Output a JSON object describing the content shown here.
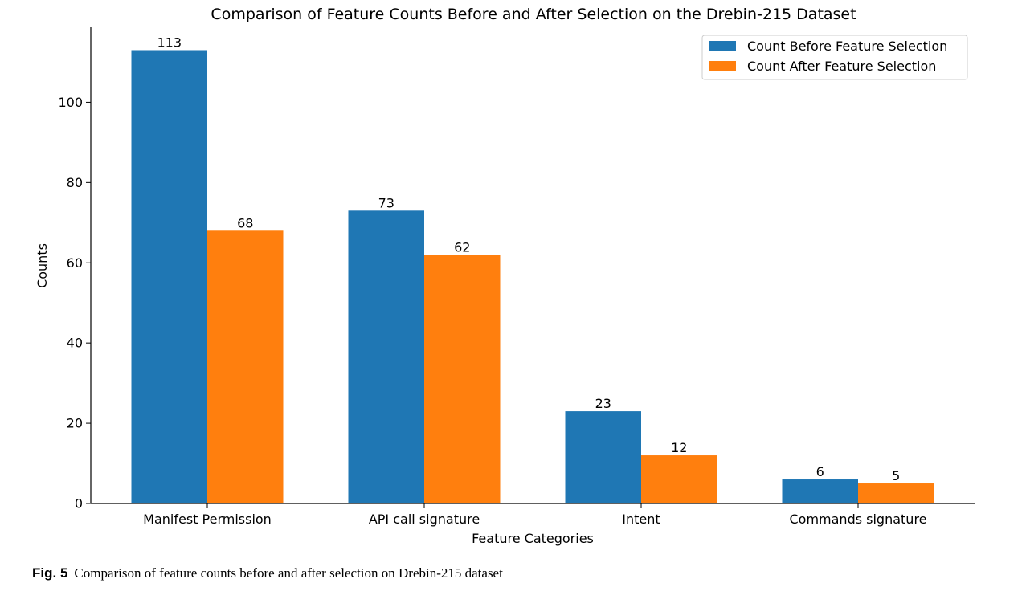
{
  "chart_data": {
    "type": "bar",
    "title": "Comparison of Feature Counts Before and After Selection on the Drebin-215 Dataset",
    "xlabel": "Feature Categories",
    "ylabel": "Counts",
    "categories": [
      "Manifest Permission",
      "API call signature",
      "Intent",
      "Commands signature"
    ],
    "series": [
      {
        "name": "Count Before Feature Selection",
        "values": [
          113,
          73,
          23,
          6
        ],
        "color": "#1f77b4"
      },
      {
        "name": "Count After Feature Selection",
        "values": [
          68,
          62,
          12,
          5
        ],
        "color": "#ff7f0e"
      }
    ],
    "ylim": [
      0,
      118.7
    ],
    "yticks": [
      0,
      20,
      40,
      60,
      80,
      100
    ],
    "grid": false,
    "legend": "top-right",
    "data_labels": true
  },
  "caption": {
    "label": "Fig. 5",
    "text": "Comparison of feature counts before and after selection on Drebin-215 dataset"
  }
}
